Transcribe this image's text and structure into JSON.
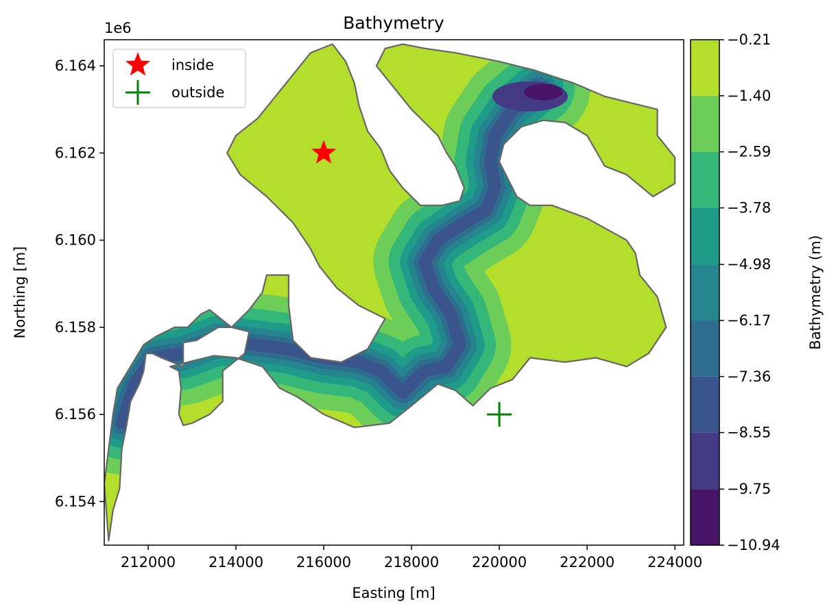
{
  "chart_data": {
    "type": "heatmap",
    "title": "Bathymetry",
    "xlabel": "Easting [m]",
    "ylabel": "Northing [m]",
    "y_offset_label": "1e6",
    "xlim": [
      211000,
      224200
    ],
    "ylim": [
      6153000,
      6164600
    ],
    "x_ticks": [
      212000,
      214000,
      216000,
      218000,
      220000,
      222000,
      224000
    ],
    "x_tick_labels": [
      "212000",
      "214000",
      "216000",
      "218000",
      "220000",
      "222000",
      "224000"
    ],
    "y_ticks": [
      6154000,
      6156000,
      6158000,
      6160000,
      6162000,
      6164000
    ],
    "y_tick_labels": [
      "6.154",
      "6.156",
      "6.158",
      "6.160",
      "6.162",
      "6.164"
    ],
    "grid": false,
    "legend": {
      "placement": "upper-left",
      "entries": [
        {
          "label": "inside",
          "marker": "star",
          "color": "#ff0000"
        },
        {
          "label": "outside",
          "marker": "plus",
          "color": "#008000"
        }
      ]
    },
    "points": [
      {
        "name": "inside",
        "x": 216000,
        "y": 6162000
      },
      {
        "name": "outside",
        "x": 220000,
        "y": 6156000
      }
    ],
    "colorbar": {
      "label": "Bathymetry (m)",
      "colormap": "viridis",
      "levels": [
        -10.94,
        -9.75,
        -8.55,
        -7.36,
        -6.17,
        -4.98,
        -3.78,
        -2.59,
        -1.4,
        -0.21
      ],
      "tick_labels": [
        "−10.94",
        "−9.75",
        "−8.55",
        "−7.36",
        "−6.17",
        "−4.98",
        "−3.78",
        "−2.59",
        "−1.40",
        "−0.21"
      ],
      "colors": [
        "#481467",
        "#443983",
        "#3a548c",
        "#2e6d8e",
        "#25858e",
        "#1e9c89",
        "#35b779",
        "#6cce59",
        "#b4de2c",
        "#dfe318"
      ]
    },
    "domain_outline": [
      [
        211100,
        6153100
      ],
      [
        211200,
        6153800
      ],
      [
        211350,
        6154300
      ],
      [
        211400,
        6155200
      ],
      [
        211500,
        6155700
      ],
      [
        211600,
        6156300
      ],
      [
        211800,
        6156700
      ],
      [
        211900,
        6157000
      ],
      [
        211950,
        6157400
      ],
      [
        212100,
        6157400
      ],
      [
        212300,
        6157300
      ],
      [
        212800,
        6157100
      ],
      [
        212800,
        6157650
      ],
      [
        213100,
        6157700
      ],
      [
        213600,
        6158000
      ],
      [
        213900,
        6158000
      ],
      [
        214300,
        6157900
      ],
      [
        214200,
        6157400
      ],
      [
        213700,
        6157000
      ],
      [
        213700,
        6156300
      ],
      [
        213400,
        6156000
      ],
      [
        213000,
        6155800
      ],
      [
        212800,
        6155750
      ],
      [
        212700,
        6156000
      ],
      [
        212750,
        6156600
      ],
      [
        212700,
        6157000
      ],
      [
        212500,
        6157100
      ],
      [
        213500,
        6157350
      ],
      [
        214000,
        6157300
      ],
      [
        214600,
        6157100
      ],
      [
        215000,
        6156600
      ],
      [
        215400,
        6156400
      ],
      [
        216000,
        6156000
      ],
      [
        216700,
        6155700
      ],
      [
        217500,
        6155800
      ],
      [
        218000,
        6156200
      ],
      [
        218600,
        6156700
      ],
      [
        219000,
        6156550
      ],
      [
        219400,
        6156200
      ],
      [
        219800,
        6156600
      ],
      [
        220300,
        6156800
      ],
      [
        220700,
        6157300
      ],
      [
        221500,
        6157200
      ],
      [
        222200,
        6157300
      ],
      [
        222900,
        6157100
      ],
      [
        223400,
        6157400
      ],
      [
        223800,
        6158000
      ],
      [
        223600,
        6158700
      ],
      [
        223200,
        6159200
      ],
      [
        223100,
        6159700
      ],
      [
        222900,
        6160000
      ],
      [
        222000,
        6160500
      ],
      [
        221200,
        6160800
      ],
      [
        220700,
        6160800
      ],
      [
        220400,
        6161000
      ],
      [
        220200,
        6161400
      ],
      [
        220000,
        6161800
      ],
      [
        220100,
        6162200
      ],
      [
        220500,
        6162600
      ],
      [
        221000,
        6162750
      ],
      [
        221500,
        6162700
      ],
      [
        222000,
        6162400
      ],
      [
        222400,
        6161700
      ],
      [
        222900,
        6161500
      ],
      [
        223500,
        6161000
      ],
      [
        224000,
        6161300
      ],
      [
        224000,
        6161900
      ],
      [
        223600,
        6162400
      ],
      [
        223600,
        6163000
      ],
      [
        222400,
        6163300
      ],
      [
        221700,
        6163600
      ],
      [
        220800,
        6163900
      ],
      [
        220000,
        6164100
      ],
      [
        219000,
        6164300
      ],
      [
        218300,
        6164400
      ],
      [
        217800,
        6164500
      ],
      [
        217400,
        6164400
      ],
      [
        217200,
        6164000
      ],
      [
        217600,
        6163500
      ],
      [
        218000,
        6163000
      ],
      [
        218300,
        6162700
      ],
      [
        218600,
        6162400
      ],
      [
        218800,
        6162000
      ],
      [
        219000,
        6161700
      ],
      [
        219200,
        6161200
      ],
      [
        219100,
        6160900
      ],
      [
        218700,
        6160800
      ],
      [
        218200,
        6160800
      ],
      [
        217800,
        6161200
      ],
      [
        217500,
        6161600
      ],
      [
        217300,
        6162100
      ],
      [
        217000,
        6162500
      ],
      [
        216800,
        6163100
      ],
      [
        216700,
        6163600
      ],
      [
        216500,
        6164100
      ],
      [
        216200,
        6164500
      ],
      [
        215700,
        6164300
      ],
      [
        215300,
        6163800
      ],
      [
        214900,
        6163300
      ],
      [
        214500,
        6162800
      ],
      [
        214000,
        6162400
      ],
      [
        213800,
        6162000
      ],
      [
        214100,
        6161500
      ],
      [
        214700,
        6161000
      ],
      [
        215300,
        6160400
      ],
      [
        215700,
        6159800
      ],
      [
        215900,
        6159400
      ],
      [
        216300,
        6158900
      ],
      [
        216800,
        6158500
      ],
      [
        217400,
        6158200
      ],
      [
        217000,
        6157500
      ],
      [
        216400,
        6157200
      ],
      [
        215700,
        6157300
      ],
      [
        215300,
        6157700
      ],
      [
        215200,
        6158500
      ],
      [
        215200,
        6159200
      ],
      [
        214700,
        6159200
      ],
      [
        214600,
        6158800
      ],
      [
        214300,
        6158400
      ],
      [
        213900,
        6158000
      ],
      [
        213400,
        6158400
      ],
      [
        213200,
        6158300
      ],
      [
        212900,
        6158000
      ],
      [
        212600,
        6158000
      ],
      [
        212200,
        6157800
      ],
      [
        211900,
        6157600
      ],
      [
        211600,
        6157100
      ],
      [
        211300,
        6156600
      ],
      [
        211200,
        6156000
      ],
      [
        211100,
        6155200
      ],
      [
        211000,
        6154400
      ],
      [
        211100,
        6153100
      ]
    ]
  }
}
